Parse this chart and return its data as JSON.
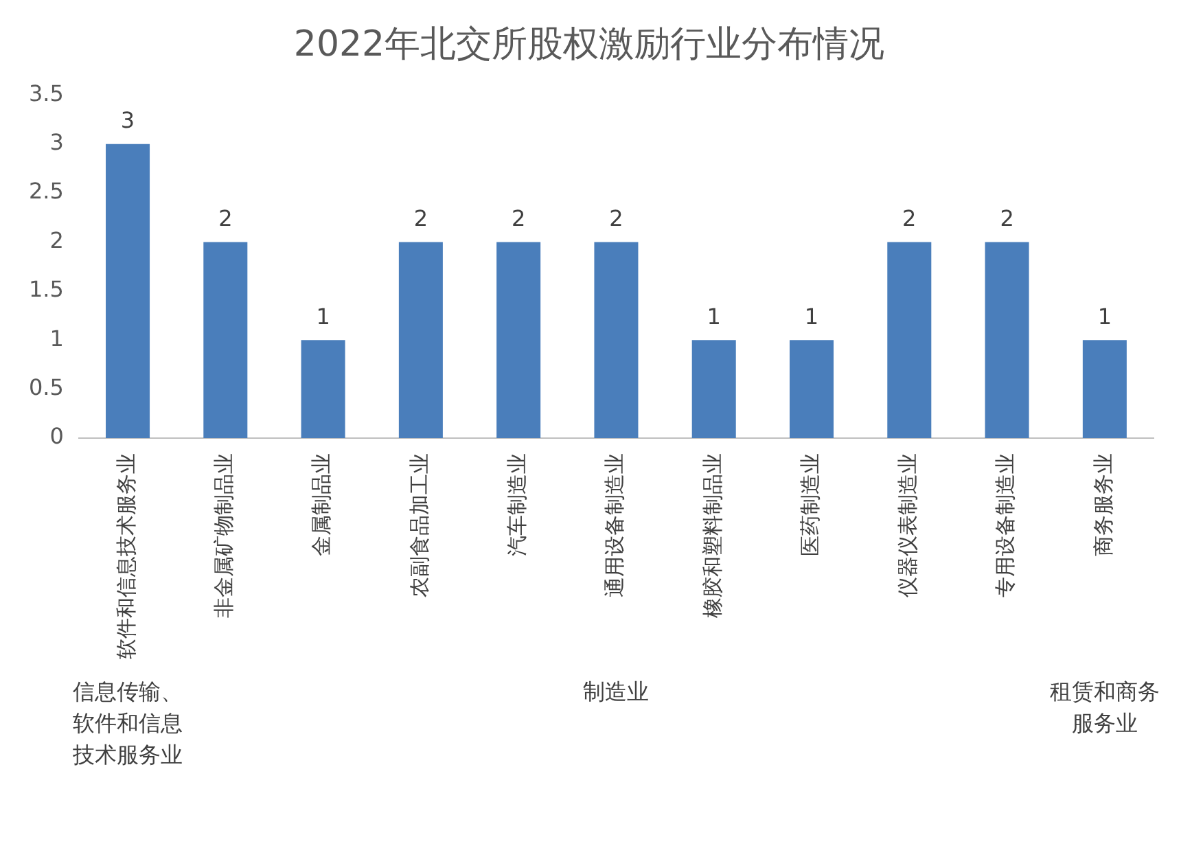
{
  "chart_data": {
    "type": "bar",
    "title": "2022年北交所股权激励行业分布情况",
    "categories": [
      "软件和信息技术服务业",
      "非金属矿物制品业",
      "金属制品业",
      "农副食品加工业",
      "汽车制造业",
      "通用设备制造业",
      "橡胶和塑料制品业",
      "医药制造业",
      "仪器仪表制造业",
      "专用设备制造业",
      "商务服务业"
    ],
    "values": [
      3,
      2,
      1,
      2,
      2,
      2,
      1,
      1,
      2,
      2,
      1
    ],
    "color": "#4a7ebb",
    "ylim": [
      0,
      3.5
    ],
    "yticks": [
      0,
      0.5,
      1,
      1.5,
      2,
      2.5,
      3,
      3.5
    ],
    "grid": false,
    "legend": false,
    "data_labels": true,
    "annotations": [
      "信息传输、软件和信息技术服务业",
      "制造业",
      "租赁和商务服务业"
    ]
  }
}
